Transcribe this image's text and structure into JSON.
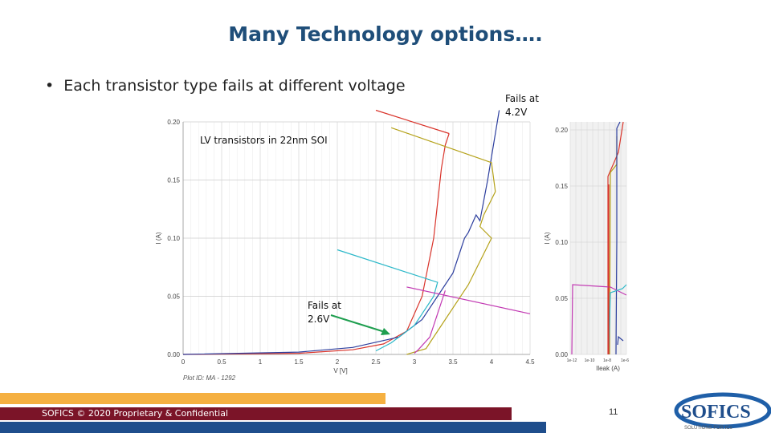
{
  "title": "Many Technology options….",
  "bullet": "Each transistor type fails at different voltage",
  "annotations": {
    "fails_high": [
      "Fails at",
      "4.2V"
    ],
    "fails_low": [
      "Fails at",
      "2.6V"
    ]
  },
  "footer": {
    "confidential": "SOFICS © 2020 Proprietary & Confidential",
    "page_number": "11",
    "logo_text": "SOFICS",
    "logo_tagline": "SOLUTIONS FOR ICs"
  },
  "colors": {
    "title": "#1f4e79",
    "band_orange": "#f5b041",
    "band_maroon": "#7b1428",
    "band_blue": "#1f4e8c",
    "arrow": "#1e9e4f"
  },
  "chart_data": [
    {
      "type": "line",
      "title": "LV transistors in 22nm SOI",
      "xlabel": "V [V]",
      "ylabel": "I (A)",
      "xlim": [
        0,
        4.5
      ],
      "ylim": [
        0,
        0.2
      ],
      "xticks": [
        "0",
        "0.5",
        "1",
        "1.5",
        "2",
        "2.5",
        "3",
        "3.5",
        "4",
        "4.5"
      ],
      "yticks": [
        "0.00",
        "0.05",
        "0.10",
        "0.15",
        "0.20"
      ],
      "footnote": "Plot ID: MA - 1292",
      "grid": true,
      "series": [
        {
          "color": "#d9342b",
          "x": [
            0,
            1.5,
            2.2,
            2.6,
            2.9,
            3.1,
            3.25,
            3.3,
            3.35,
            3.4,
            3.45
          ],
          "y": [
            0,
            0.001,
            0.004,
            0.009,
            0.02,
            0.05,
            0.1,
            0.13,
            0.16,
            0.18,
            0.19
          ]
        },
        {
          "color": "#d9342b",
          "x": [
            2.5,
            3.45
          ],
          "y": [
            0.21,
            0.19
          ]
        },
        {
          "color": "#2d3f9e",
          "x": [
            0,
            1.5,
            2.2,
            2.8,
            3.1,
            3.3,
            3.5,
            3.6,
            3.65,
            3.7,
            3.8,
            3.85,
            3.95,
            4.0,
            4.1
          ],
          "y": [
            0,
            0.002,
            0.006,
            0.015,
            0.03,
            0.05,
            0.07,
            0.09,
            0.1,
            0.105,
            0.12,
            0.115,
            0.15,
            0.17,
            0.21
          ]
        },
        {
          "color": "#b5a21a",
          "x": [
            2.7,
            4.0,
            4.05,
            3.9,
            3.85,
            4.0,
            3.7,
            3.3,
            3.15,
            3.0,
            2.9
          ],
          "y": [
            0.195,
            0.165,
            0.14,
            0.12,
            0.11,
            0.1,
            0.06,
            0.02,
            0.005,
            0.002,
            0
          ]
        },
        {
          "color": "#2bb8c9",
          "x": [
            2.0,
            3.3,
            3.25,
            3.0,
            2.7,
            2.5
          ],
          "y": [
            0.09,
            0.062,
            0.05,
            0.025,
            0.01,
            0.003
          ]
        },
        {
          "color": "#c23ab3",
          "x": [
            3.4,
            3.3,
            3.2,
            3.05,
            3.0
          ],
          "y": [
            0.055,
            0.035,
            0.015,
            0.004,
            0.001
          ]
        },
        {
          "color": "#c23ab3",
          "x": [
            2.9,
            4.5
          ],
          "y": [
            0.058,
            0.035
          ]
        }
      ]
    },
    {
      "type": "line",
      "xlabel": "Ileak (A)",
      "ylabel": "I (A)",
      "yticks": [
        "0.00",
        "0.05",
        "0.10",
        "0.15",
        "0.20"
      ],
      "xticks": [
        "1e-12",
        "1e-10",
        "1e-8",
        "1e-6"
      ]
    }
  ]
}
